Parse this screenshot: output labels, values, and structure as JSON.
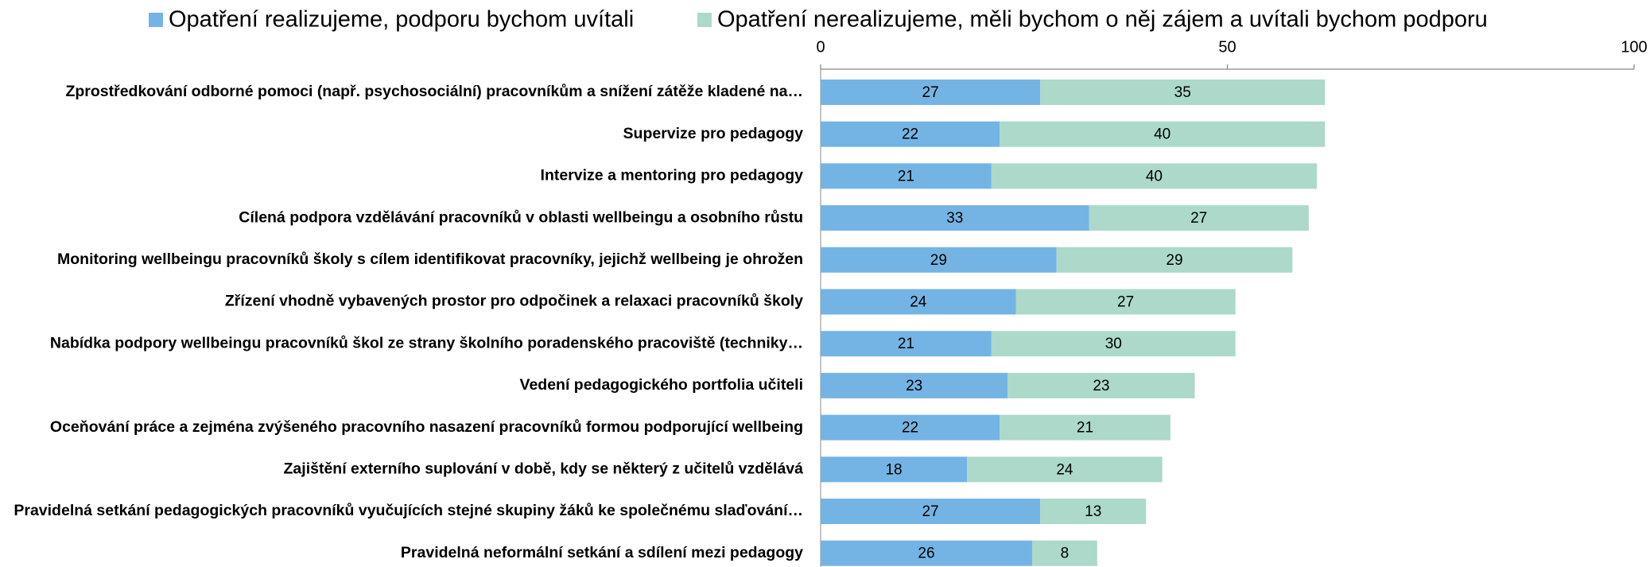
{
  "chart_data": {
    "type": "stacked_barh",
    "categories": [
      "Zprostředkování odborné pomoci (např. psychosociální) pracovníkům a snížení zátěže kladené na…",
      "Supervize pro pedagogy",
      "Intervize a mentoring pro pedagogy",
      "Cílená podpora vzdělávání pracovníků v oblasti wellbeingu a osobního růstu",
      "Monitoring wellbeingu pracovníků školy s cílem identifikovat pracovníky, jejichž wellbeing je ohrožen",
      "Zřízení vhodně vybavených prostor pro odpočinek a relaxaci pracovníků školy",
      "Nabídka podpory wellbeingu pracovníků škol ze strany školního poradenského pracoviště (techniky…",
      "Vedení pedagogického portfolia učiteli",
      "Oceňování práce a zejména zvýšeného pracovního nasazení pracovníků formou podporující wellbeing",
      "Zajištění externího suplování v době, kdy se některý z učitelů vzdělává",
      "Pravidelná setkání pedagogických pracovníků vyučujících stejné skupiny žáků ke společnému slaďování…",
      "Pravidelná neformální setkání a sdílení mezi pedagogy"
    ],
    "series": [
      {
        "name": "Opatření realizujeme, podporu bychom uvítali",
        "color": "#74b4e4",
        "values": [
          27,
          22,
          21,
          33,
          29,
          24,
          21,
          23,
          22,
          18,
          27,
          26
        ]
      },
      {
        "name": "Opatření  nerealizujeme, měli bychom o něj zájem a uvítali bychom podporu",
        "color": "#acd9ca",
        "values": [
          35,
          40,
          40,
          27,
          29,
          27,
          30,
          23,
          21,
          24,
          13,
          8
        ]
      }
    ],
    "xlim": [
      0,
      100
    ],
    "xticks": [
      0,
      50,
      100
    ],
    "legend": "top"
  }
}
